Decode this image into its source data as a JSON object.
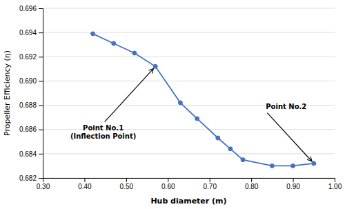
{
  "chart_data": {
    "type": "line",
    "x": [
      0.42,
      0.47,
      0.52,
      0.57,
      0.63,
      0.67,
      0.72,
      0.75,
      0.78,
      0.85,
      0.9,
      0.95
    ],
    "values": [
      0.6939,
      0.6931,
      0.6923,
      0.6912,
      0.6882,
      0.6869,
      0.6853,
      0.6844,
      0.6835,
      0.683,
      0.683,
      0.6832
    ],
    "color": "#4472C4",
    "marker": "circle",
    "xlim": [
      0.3,
      1.0
    ],
    "ylim": [
      0.682,
      0.696
    ],
    "xticks": [
      {
        "value": 0.3,
        "label": "0.30"
      },
      {
        "value": 0.4,
        "label": "0.40"
      },
      {
        "value": 0.5,
        "label": "0.50"
      },
      {
        "value": 0.6,
        "label": "0.60"
      },
      {
        "value": 0.7,
        "label": "0.70"
      },
      {
        "value": 0.8,
        "label": "0.80"
      },
      {
        "value": 0.9,
        "label": "0.90"
      },
      {
        "value": 1.0,
        "label": "1.00"
      }
    ],
    "yticks": [
      0.682,
      0.684,
      0.686,
      0.688,
      {
        "value": 0.69,
        "label": "0.690"
      },
      0.692,
      0.694,
      0.696
    ],
    "xlabel": "Hub diameter (m)",
    "ylabel": "Propeller Efficiency (η)",
    "grid": "y",
    "annotations": [
      {
        "text": "Point No.1\n(Inflection Point)",
        "x": 0.57,
        "y": 0.6912,
        "text_x": 0.445,
        "text_y": 0.6865
      },
      {
        "text": "Point No.2",
        "x": 0.95,
        "y": 0.6832,
        "text_x": 0.835,
        "text_y": 0.6875
      }
    ]
  }
}
